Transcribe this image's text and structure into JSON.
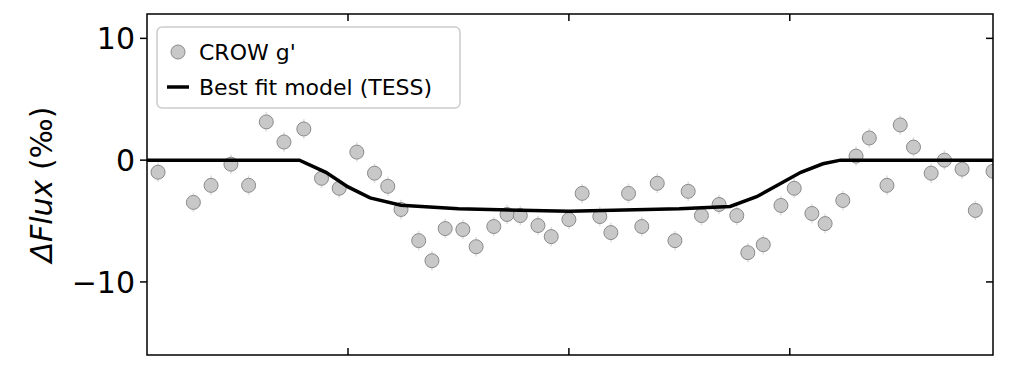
{
  "chart_data": {
    "type": "scatter",
    "y_label": "ΔFlux (‰)",
    "xlim": [
      -1.91,
      1.92
    ],
    "xticks": [
      -1,
      0,
      1
    ],
    "ylim": [
      -16,
      12
    ],
    "yticks": [
      -10,
      0,
      10
    ],
    "tick_labels": "y",
    "legend": "upper left",
    "grid": false,
    "series": [
      {
        "name": "CROW g'",
        "type": "scatter",
        "color": "#c8c8c8",
        "marker": "circle",
        "x": [
          -1.86,
          -1.7,
          -1.62,
          -1.53,
          -1.45,
          -1.37,
          -1.29,
          -1.2,
          -1.12,
          -1.04,
          -0.96,
          -0.88,
          -0.82,
          -0.76,
          -0.68,
          -0.62,
          -0.56,
          -0.48,
          -0.42,
          -0.34,
          -0.28,
          -0.22,
          -0.14,
          -0.08,
          0.0,
          0.06,
          0.14,
          0.19,
          0.27,
          0.33,
          0.4,
          0.48,
          0.54,
          0.6,
          0.68,
          0.76,
          0.81,
          0.88,
          0.96,
          1.02,
          1.1,
          1.16,
          1.24,
          1.3,
          1.36,
          1.44,
          1.5,
          1.56,
          1.64,
          1.7,
          1.78,
          1.84,
          1.92
        ],
        "values": [
          -0.99,
          -3.47,
          -2.07,
          -0.33,
          -2.07,
          3.14,
          1.49,
          2.56,
          -1.49,
          -2.31,
          0.66,
          -1.07,
          -2.15,
          -4.05,
          -6.61,
          -8.26,
          -5.62,
          -5.7,
          -7.11,
          -5.45,
          -4.46,
          -4.55,
          -5.37,
          -6.28,
          -4.88,
          -2.73,
          -4.63,
          -5.95,
          -2.73,
          -5.45,
          -1.9,
          -6.61,
          -2.56,
          -4.55,
          -3.64,
          -4.55,
          -7.6,
          -6.94,
          -3.72,
          -2.31,
          -4.38,
          -5.21,
          -3.31,
          0.33,
          1.82,
          -2.07,
          2.89,
          1.07,
          -1.07,
          0,
          -0.74,
          -4.13,
          -0.91
        ],
        "errors": [
          0.8,
          0.8,
          0.8,
          0.8,
          0.8,
          0.8,
          0.8,
          0.8,
          0.8,
          0.8,
          0.8,
          0.8,
          0.8,
          0.8,
          0.8,
          0.8,
          0.8,
          0.8,
          0.8,
          0.8,
          0.8,
          0.8,
          0.8,
          0.8,
          0.8,
          0.8,
          0.8,
          0.8,
          0.8,
          0.8,
          0.8,
          0.8,
          0.8,
          0.8,
          0.8,
          0.8,
          0.8,
          0.8,
          0.8,
          0.8,
          0.8,
          0.8,
          0.8,
          0.8,
          0.8,
          0.8,
          0.8,
          0.8,
          0.8,
          0.8,
          0.8,
          0.8,
          0.8
        ]
      },
      {
        "name": "Best fit model (TESS)",
        "type": "line",
        "color": "#000000",
        "line_style": "solid",
        "x": [
          -1.91,
          -1.22,
          -1.1,
          -1.0,
          -0.9,
          -0.76,
          -0.5,
          0,
          0.5,
          0.73,
          0.85,
          0.95,
          1.05,
          1.15,
          1.23,
          1.92
        ],
        "values": [
          0,
          0,
          -1.0,
          -2.2,
          -3.1,
          -3.7,
          -4.0,
          -4.2,
          -4.0,
          -3.8,
          -3.0,
          -2.0,
          -1.0,
          -0.3,
          0,
          0
        ]
      }
    ]
  }
}
